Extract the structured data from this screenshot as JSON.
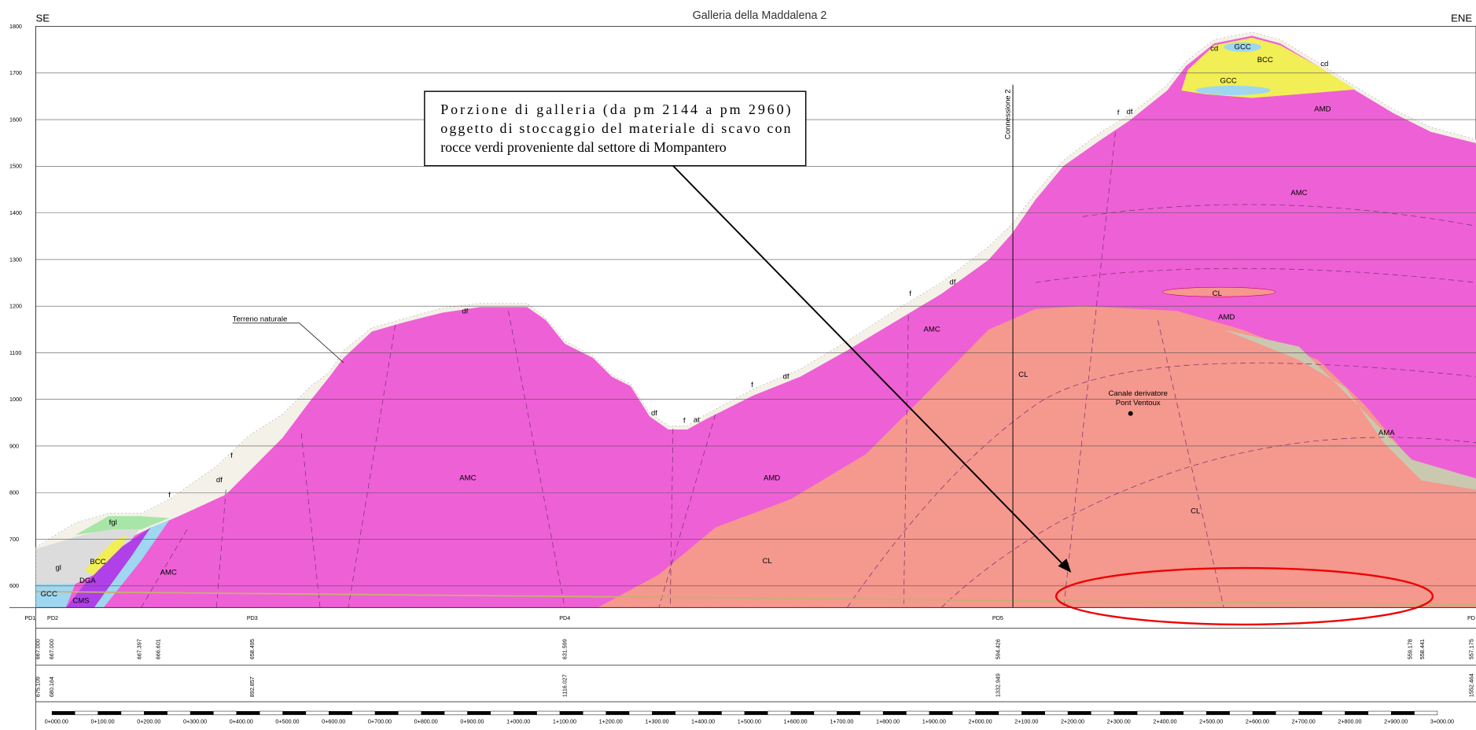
{
  "header": {
    "title": "Galleria della Maddalena 2",
    "left": "SE",
    "right": "ENE"
  },
  "elevations": [
    "1800",
    "1700",
    "1600",
    "1500",
    "1400",
    "1300",
    "1200",
    "1100",
    "1000",
    "900",
    "800",
    "700",
    "600"
  ],
  "annotation": [
    "Porzione di galleria (da pm 2144 a pm 2960)",
    "oggetto di stoccaggio del materiale di scavo con",
    "rocce verdi proveniente dal settore di Mompantero"
  ],
  "notes": {
    "terrain": "Terreno naturale",
    "connection": "Connessione 2",
    "canal": [
      "Canale derivatore",
      "Pont Ventoux"
    ]
  },
  "formations": [
    "GCC",
    "cd",
    "BCC",
    "cd",
    "GCC",
    "AMD",
    "f",
    "df",
    "AMC",
    "CL",
    "AMD",
    "AMC",
    "CL",
    "AMA",
    "CL",
    "f",
    "df",
    "f",
    "df",
    "df",
    "f",
    "at",
    "df",
    "AMC",
    "AMD",
    "CL",
    "f",
    "df",
    "f",
    "fgl",
    "BCC",
    "gl",
    "AMC",
    "GCC",
    "DGA",
    "CMS"
  ],
  "stations": [
    "PD1",
    "PD2",
    "PD3",
    "PD4",
    "PD5",
    "PD"
  ],
  "quotas": [
    "667.000",
    "667.000",
    "667.397",
    "666.601",
    "658.495",
    "631.599",
    "594.426",
    "559.178",
    "558.441",
    "557.175"
  ],
  "progressives": [
    "675.109",
    "680.164",
    "892.857",
    "1116.027",
    "1332.949",
    "1552.464"
  ],
  "chainage": [
    "0+000.00",
    "0+100.00",
    "0+200.00",
    "0+300.00",
    "0+400.00",
    "0+500.00",
    "0+600.00",
    "0+700.00",
    "0+800.00",
    "0+900.00",
    "1+000.00",
    "1+100.00",
    "1+200.00",
    "1+300.00",
    "1+400.00",
    "1+500.00",
    "1+600.00",
    "1+700.00",
    "1+800.00",
    "1+900.00",
    "2+000.00",
    "2+100.00",
    "2+200.00",
    "2+300.00",
    "2+400.00",
    "2+500.00",
    "2+600.00",
    "2+700.00",
    "2+800.00",
    "2+900.00",
    "3+000.00"
  ]
}
